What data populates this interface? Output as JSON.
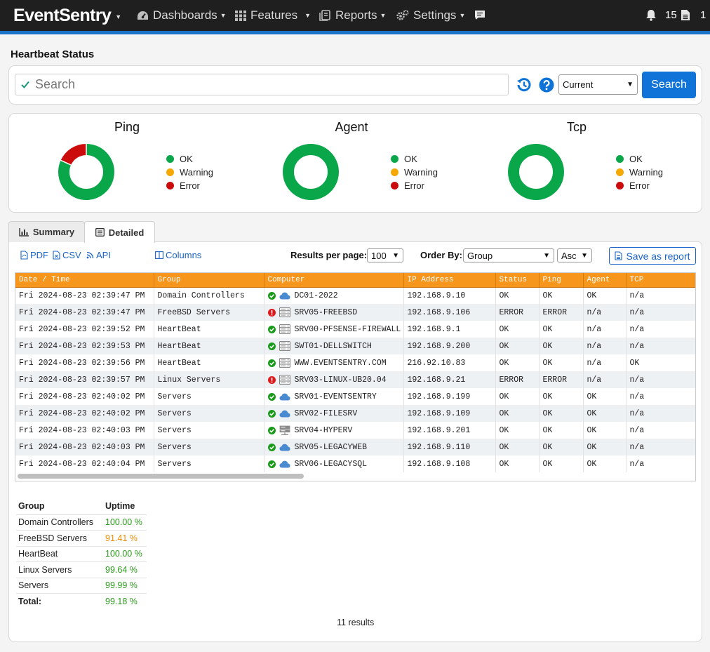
{
  "nav": {
    "brand": "EventSentry",
    "items": [
      {
        "label": "Dashboards",
        "icon": "dashboard-icon"
      },
      {
        "label": "Features",
        "icon": "grid-icon"
      },
      {
        "label": "Reports",
        "icon": "reports-icon"
      },
      {
        "label": "Settings",
        "icon": "gear-icon"
      }
    ],
    "chat_icon": "chat-icon",
    "notifications_count": "15",
    "documents_count": "1"
  },
  "page": {
    "title": "Heartbeat Status"
  },
  "search": {
    "placeholder": "Search",
    "time_select": "Current",
    "button_label": "Search"
  },
  "charts": {
    "ping_title": "Ping",
    "agent_title": "Agent",
    "tcp_title": "Tcp",
    "legend": {
      "ok": "OK",
      "warning": "Warning",
      "error": "Error"
    },
    "colors": {
      "ok": "#0aa64a",
      "warning": "#f5a800",
      "error": "#cc0c0c"
    }
  },
  "chart_data": [
    {
      "type": "pie",
      "title": "Ping",
      "categories": [
        "OK",
        "Warning",
        "Error"
      ],
      "values": [
        9,
        0,
        2
      ]
    },
    {
      "type": "pie",
      "title": "Agent",
      "categories": [
        "OK",
        "Warning",
        "Error"
      ],
      "values": [
        7,
        0,
        0
      ]
    },
    {
      "type": "pie",
      "title": "Tcp",
      "categories": [
        "OK",
        "Warning",
        "Error"
      ],
      "values": [
        1,
        0,
        0
      ]
    }
  ],
  "tabs": {
    "summary": "Summary",
    "detailed": "Detailed"
  },
  "toolbar": {
    "pdf": "PDF",
    "csv": "CSV",
    "api": "API",
    "columns": "Columns",
    "results_per_page_label": "Results per page:",
    "results_per_page": "100",
    "order_by_label": "Order By:",
    "order_by": "Group",
    "order_dir": "Asc",
    "save_report": "Save as report"
  },
  "table": {
    "headers": {
      "datetime": "Date / Time",
      "group": "Group",
      "computer": "Computer",
      "ip": "IP Address",
      "status": "Status",
      "ping": "Ping",
      "agent": "Agent",
      "tcp": "TCP"
    },
    "rows": [
      {
        "datetime": "Fri 2024-08-23 02:39:47 PM",
        "group": "Domain Controllers",
        "computer": "DC01-2022",
        "ip": "192.168.9.10",
        "status": "OK",
        "ping": "OK",
        "agent": "OK",
        "tcp": "n/a",
        "state": "ok",
        "icon": "cloud"
      },
      {
        "datetime": "Fri 2024-08-23 02:39:47 PM",
        "group": "FreeBSD Servers",
        "computer": "SRV05-FREEBSD",
        "ip": "192.168.9.106",
        "status": "ERROR",
        "ping": "ERROR",
        "agent": "n/a",
        "tcp": "n/a",
        "state": "error",
        "icon": "server"
      },
      {
        "datetime": "Fri 2024-08-23 02:39:52 PM",
        "group": "HeartBeat",
        "computer": "SRV00-PFSENSE-FIREWALL",
        "ip": "192.168.9.1",
        "status": "OK",
        "ping": "OK",
        "agent": "n/a",
        "tcp": "n/a",
        "state": "ok",
        "icon": "server"
      },
      {
        "datetime": "Fri 2024-08-23 02:39:53 PM",
        "group": "HeartBeat",
        "computer": "SWT01-DELLSWITCH",
        "ip": "192.168.9.200",
        "status": "OK",
        "ping": "OK",
        "agent": "n/a",
        "tcp": "n/a",
        "state": "ok",
        "icon": "server"
      },
      {
        "datetime": "Fri 2024-08-23 02:39:56 PM",
        "group": "HeartBeat",
        "computer": "WWW.EVENTSENTRY.COM",
        "ip": "216.92.10.83",
        "status": "OK",
        "ping": "OK",
        "agent": "n/a",
        "tcp": "OK",
        "state": "ok",
        "icon": "server"
      },
      {
        "datetime": "Fri 2024-08-23 02:39:57 PM",
        "group": "Linux Servers",
        "computer": "SRV03-LINUX-UB20.04",
        "ip": "192.168.9.21",
        "status": "ERROR",
        "ping": "ERROR",
        "agent": "n/a",
        "tcp": "n/a",
        "state": "error",
        "icon": "server"
      },
      {
        "datetime": "Fri 2024-08-23 02:40:02 PM",
        "group": "Servers",
        "computer": "SRV01-EVENTSENTRY",
        "ip": "192.168.9.199",
        "status": "OK",
        "ping": "OK",
        "agent": "OK",
        "tcp": "n/a",
        "state": "ok",
        "icon": "cloud"
      },
      {
        "datetime": "Fri 2024-08-23 02:40:02 PM",
        "group": "Servers",
        "computer": "SRV02-FILESRV",
        "ip": "192.168.9.109",
        "status": "OK",
        "ping": "OK",
        "agent": "OK",
        "tcp": "n/a",
        "state": "ok",
        "icon": "cloud"
      },
      {
        "datetime": "Fri 2024-08-23 02:40:03 PM",
        "group": "Servers",
        "computer": "SRV04-HYPERV",
        "ip": "192.168.9.201",
        "status": "OK",
        "ping": "OK",
        "agent": "OK",
        "tcp": "n/a",
        "state": "ok",
        "icon": "hyperv"
      },
      {
        "datetime": "Fri 2024-08-23 02:40:03 PM",
        "group": "Servers",
        "computer": "SRV05-LEGACYWEB",
        "ip": "192.168.9.110",
        "status": "OK",
        "ping": "OK",
        "agent": "OK",
        "tcp": "n/a",
        "state": "ok",
        "icon": "cloud"
      },
      {
        "datetime": "Fri 2024-08-23 02:40:04 PM",
        "group": "Servers",
        "computer": "SRV06-LEGACYSQL",
        "ip": "192.168.9.108",
        "status": "OK",
        "ping": "OK",
        "agent": "OK",
        "tcp": "n/a",
        "state": "ok",
        "icon": "cloud"
      }
    ]
  },
  "uptime": {
    "headers": {
      "group": "Group",
      "uptime": "Uptime"
    },
    "rows": [
      {
        "group": "Domain Controllers",
        "uptime": "100.00 %",
        "level": "good"
      },
      {
        "group": "FreeBSD Servers",
        "uptime": "91.41 %",
        "level": "warn"
      },
      {
        "group": "HeartBeat",
        "uptime": "100.00 %",
        "level": "good"
      },
      {
        "group": "Linux Servers",
        "uptime": "99.64 %",
        "level": "good"
      },
      {
        "group": "Servers",
        "uptime": "99.99 %",
        "level": "good"
      }
    ],
    "total_label": "Total:",
    "total_value": "99.18 %"
  },
  "footer": {
    "results": "11 results"
  }
}
